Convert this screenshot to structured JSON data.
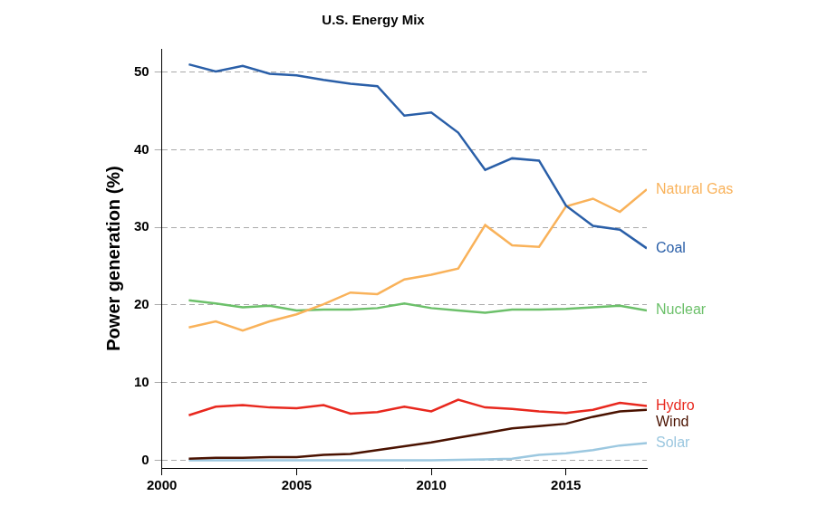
{
  "chart_data": {
    "type": "line",
    "title": "U.S. Energy Mix",
    "y_label": "Power generation (%)",
    "x": [
      2001,
      2002,
      2003,
      2004,
      2005,
      2006,
      2007,
      2008,
      2009,
      2010,
      2011,
      2012,
      2013,
      2014,
      2015,
      2016,
      2017,
      2018
    ],
    "series": [
      {
        "name": "Coal",
        "color": "#2a5fa8",
        "values": [
          51.0,
          50.1,
          50.8,
          49.8,
          49.6,
          49.0,
          48.5,
          48.2,
          44.4,
          44.8,
          42.2,
          37.4,
          38.9,
          38.6,
          32.8,
          30.2,
          29.7,
          27.3
        ]
      },
      {
        "name": "Natural Gas",
        "color": "#f9b25a",
        "values": [
          17.1,
          17.9,
          16.7,
          17.9,
          18.8,
          20.1,
          21.6,
          21.4,
          23.3,
          23.9,
          24.7,
          30.3,
          27.7,
          27.5,
          32.7,
          33.7,
          32.0,
          34.9
        ]
      },
      {
        "name": "Nuclear",
        "color": "#6cc06a",
        "values": [
          20.6,
          20.2,
          19.7,
          19.9,
          19.3,
          19.4,
          19.4,
          19.6,
          20.2,
          19.6,
          19.3,
          19.0,
          19.4,
          19.4,
          19.5,
          19.7,
          19.9,
          19.3
        ]
      },
      {
        "name": "Hydro",
        "color": "#e8281e",
        "values": [
          5.8,
          6.9,
          7.1,
          6.8,
          6.7,
          7.1,
          6.0,
          6.2,
          6.9,
          6.3,
          7.8,
          6.8,
          6.6,
          6.3,
          6.1,
          6.5,
          7.4,
          7.0
        ]
      },
      {
        "name": "Wind",
        "color": "#4a1200",
        "values": [
          0.2,
          0.3,
          0.3,
          0.4,
          0.4,
          0.7,
          0.8,
          1.3,
          1.8,
          2.3,
          2.9,
          3.5,
          4.1,
          4.4,
          4.7,
          5.6,
          6.3,
          6.5
        ]
      },
      {
        "name": "Solar",
        "color": "#9cc8e0",
        "values": [
          0,
          0,
          0,
          0,
          0,
          0,
          0,
          0,
          0,
          0,
          0.05,
          0.1,
          0.2,
          0.7,
          0.9,
          1.3,
          1.9,
          2.2
        ]
      }
    ],
    "xlim": [
      2000,
      2018
    ],
    "xticks": [
      2000,
      2005,
      2010,
      2015
    ],
    "ylim": [
      -1,
      53
    ],
    "yticks": [
      0,
      10,
      20,
      30,
      40,
      50
    ],
    "grid": true
  }
}
